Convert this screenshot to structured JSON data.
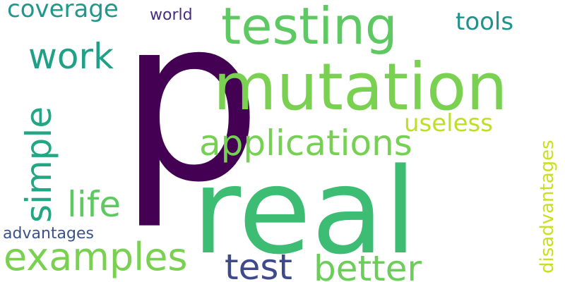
{
  "words": [
    {
      "text": "p",
      "color": "#440154",
      "weight": 1.0
    },
    {
      "text": "real",
      "color": "#3dbc74",
      "weight": 0.9
    },
    {
      "text": "mutation",
      "color": "#7ad151",
      "weight": 0.55
    },
    {
      "text": "testing",
      "color": "#5ec962",
      "weight": 0.45
    },
    {
      "text": "applications",
      "color": "#75d054",
      "weight": 0.35
    },
    {
      "text": "examples",
      "color": "#7ad151",
      "weight": 0.3
    },
    {
      "text": "better",
      "color": "#6ccd5a",
      "weight": 0.3
    },
    {
      "text": "test",
      "color": "#3e4a89",
      "weight": 0.3
    },
    {
      "text": "work",
      "color": "#1fa187",
      "weight": 0.28
    },
    {
      "text": "simple",
      "color": "#22a785",
      "weight": 0.28
    },
    {
      "text": "life",
      "color": "#5ec962",
      "weight": 0.28
    },
    {
      "text": "coverage",
      "color": "#1f988b",
      "weight": 0.2
    },
    {
      "text": "useless",
      "color": "#bddf26",
      "weight": 0.2
    },
    {
      "text": "tools",
      "color": "#21918c",
      "weight": 0.18
    },
    {
      "text": "disadvantages",
      "color": "#c8e020",
      "weight": 0.15
    },
    {
      "text": "advantages",
      "color": "#3b528b",
      "weight": 0.13
    },
    {
      "text": "world",
      "color": "#472d7b",
      "weight": 0.12
    }
  ]
}
